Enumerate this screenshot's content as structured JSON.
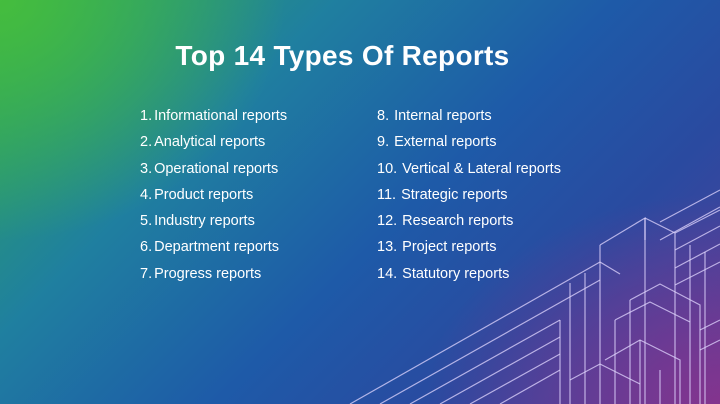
{
  "title": "Top 14 Types Of Reports",
  "left_column": [
    {
      "num": "1.",
      "label": "Informational reports"
    },
    {
      "num": "2.",
      "label": "Analytical reports"
    },
    {
      "num": "3.",
      "label": "Operational reports"
    },
    {
      "num": "4.",
      "label": "Product reports"
    },
    {
      "num": "5.",
      "label": "Industry reports"
    },
    {
      "num": "6.",
      "label": "Department reports"
    },
    {
      "num": "7.",
      "label": "Progress reports"
    }
  ],
  "right_column": [
    {
      "num": "8.",
      "label": "Internal reports"
    },
    {
      "num": "9.",
      "label": "External reports"
    },
    {
      "num": "10.",
      "label": "Vertical & Lateral reports"
    },
    {
      "num": "11.",
      "label": "Strategic reports"
    },
    {
      "num": "12.",
      "label": "Research reports"
    },
    {
      "num": "13.",
      "label": "Project reports"
    },
    {
      "num": "14.",
      "label": "Statutory reports"
    }
  ],
  "colors": {
    "gradient_start": "#2ea85a",
    "gradient_mid": "#1e5aa8",
    "gradient_end": "#8c328c",
    "text": "#ffffff"
  },
  "decoration": "isometric-buildings-line-art"
}
